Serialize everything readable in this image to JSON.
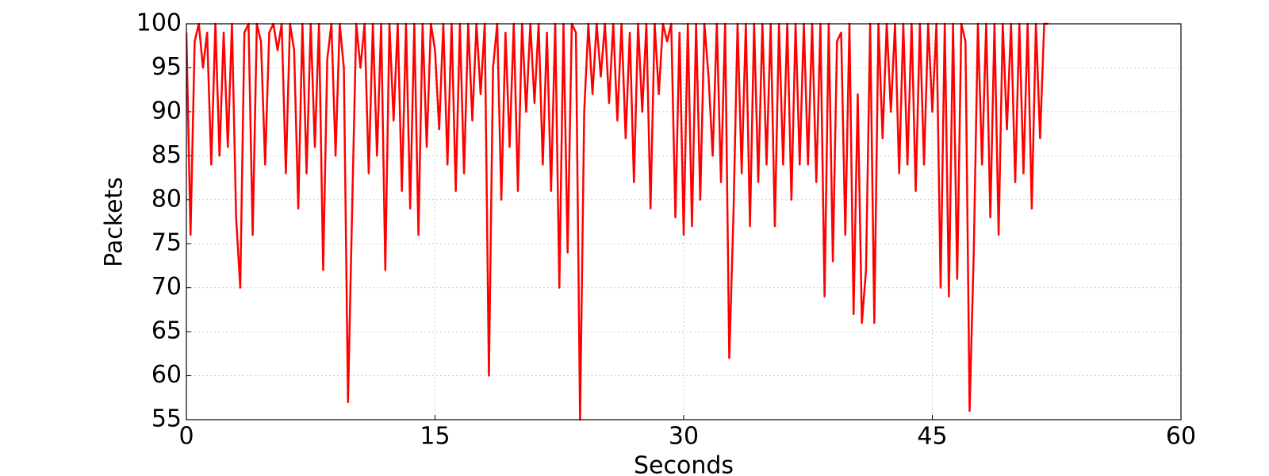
{
  "chart_data": {
    "type": "line",
    "xlabel": "Seconds",
    "ylabel": "Packets",
    "xlim": [
      0,
      60
    ],
    "xticks": [
      0,
      15,
      30,
      45,
      60
    ],
    "ylim": [
      55,
      100
    ],
    "yticks": [
      55,
      60,
      65,
      70,
      75,
      80,
      85,
      90,
      95,
      100
    ],
    "grid": true,
    "x": [
      0,
      0.25,
      0.5,
      0.75,
      1,
      1.25,
      1.5,
      1.75,
      2,
      2.25,
      2.5,
      2.75,
      3,
      3.25,
      3.5,
      3.75,
      4,
      4.25,
      4.5,
      4.75,
      5,
      5.25,
      5.5,
      5.75,
      6,
      6.25,
      6.5,
      6.75,
      7,
      7.25,
      7.5,
      7.75,
      8,
      8.25,
      8.5,
      8.75,
      9,
      9.25,
      9.5,
      9.75,
      10,
      10.25,
      10.5,
      10.75,
      11,
      11.25,
      11.5,
      11.75,
      12,
      12.25,
      12.5,
      12.75,
      13,
      13.25,
      13.5,
      13.75,
      14,
      14.25,
      14.5,
      14.75,
      15,
      15.25,
      15.5,
      15.75,
      16,
      16.25,
      16.5,
      16.75,
      17,
      17.25,
      17.5,
      17.75,
      18,
      18.25,
      18.5,
      18.75,
      19,
      19.25,
      19.5,
      19.75,
      20,
      20.25,
      20.5,
      20.75,
      21,
      21.25,
      21.5,
      21.75,
      22,
      22.25,
      22.5,
      22.75,
      23,
      23.25,
      23.5,
      23.75,
      24,
      24.25,
      24.5,
      24.75,
      25,
      25.25,
      25.5,
      25.75,
      26,
      26.25,
      26.5,
      26.75,
      27,
      27.25,
      27.5,
      27.75,
      28,
      28.25,
      28.5,
      28.75,
      29,
      29.25,
      29.5,
      29.75,
      30,
      30.25,
      30.5,
      30.75,
      31,
      31.25,
      31.5,
      31.75,
      32,
      32.25,
      32.5,
      32.75,
      33,
      33.25,
      33.5,
      33.75,
      34,
      34.25,
      34.5,
      34.75,
      35,
      35.25,
      35.5,
      35.75,
      36,
      36.25,
      36.5,
      36.75,
      37,
      37.25,
      37.5,
      37.75,
      38,
      38.25,
      38.5,
      38.75,
      39,
      39.25,
      39.5,
      39.75,
      40,
      40.25,
      40.5,
      40.75,
      41,
      41.25,
      41.5,
      41.75,
      42,
      42.25,
      42.5,
      42.75,
      43,
      43.25,
      43.5,
      43.75,
      44,
      44.25,
      44.5,
      44.75,
      45,
      45.25,
      45.5,
      45.75,
      46,
      46.25,
      46.5,
      46.75,
      47,
      47.25,
      47.5,
      47.75,
      48,
      48.25,
      48.5,
      48.75,
      49,
      49.25,
      49.5,
      49.75,
      50,
      50.25,
      50.5,
      50.75,
      51,
      51.25,
      51.5,
      51.75,
      52
    ],
    "series": [
      {
        "color": "#ff0000",
        "values": [
          99,
          76,
          98,
          100,
          95,
          99,
          84,
          100,
          85,
          99,
          86,
          100,
          78,
          70,
          99,
          100,
          76,
          100,
          98,
          84,
          99,
          100,
          97,
          100,
          83,
          100,
          97,
          79,
          100,
          83,
          100,
          86,
          100,
          72,
          96,
          100,
          85,
          100,
          95,
          57,
          79,
          100,
          95,
          100,
          83,
          100,
          85,
          100,
          72,
          100,
          89,
          100,
          81,
          100,
          79,
          100,
          76,
          100,
          86,
          100,
          97,
          88,
          100,
          84,
          100,
          81,
          100,
          83,
          100,
          89,
          100,
          92,
          100,
          60,
          95,
          100,
          80,
          99,
          86,
          100,
          81,
          100,
          90,
          100,
          91,
          100,
          84,
          99,
          81,
          100,
          70,
          100,
          74,
          100,
          99,
          55,
          90,
          100,
          92,
          100,
          94,
          100,
          91,
          100,
          89,
          100,
          87,
          99,
          82,
          100,
          90,
          100,
          79,
          100,
          92,
          100,
          98,
          100,
          78,
          99,
          76,
          100,
          77,
          100,
          80,
          100,
          94,
          85,
          100,
          82,
          100,
          62,
          78,
          100,
          83,
          100,
          77,
          100,
          82,
          100,
          84,
          100,
          77,
          100,
          84,
          100,
          80,
          100,
          84,
          100,
          84,
          100,
          82,
          100,
          69,
          100,
          73,
          98,
          99,
          76,
          100,
          67,
          92,
          66,
          72,
          100,
          66,
          100,
          87,
          100,
          90,
          100,
          83,
          100,
          84,
          100,
          81,
          100,
          84,
          100,
          90,
          100,
          70,
          100,
          69,
          100,
          71,
          100,
          98,
          56,
          74,
          100,
          84,
          100,
          78,
          100,
          76,
          100,
          88,
          100,
          82,
          100,
          83,
          100,
          79,
          100,
          87,
          100,
          100
        ]
      }
    ]
  }
}
